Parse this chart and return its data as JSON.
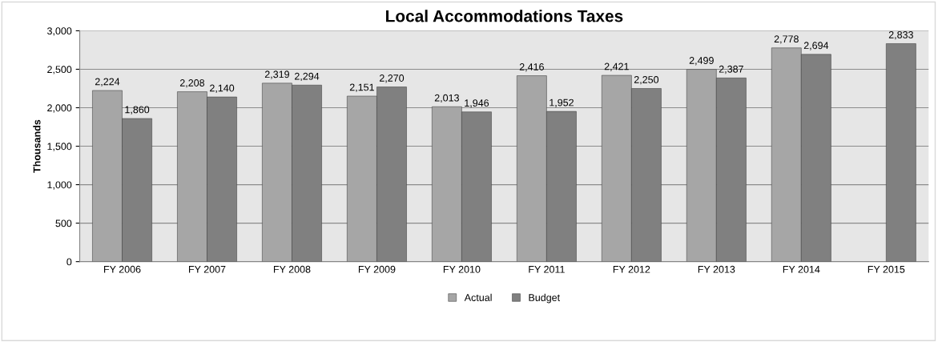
{
  "chart_data": {
    "type": "bar",
    "title": "Local Accommodations Taxes",
    "ylabel": "Thousands",
    "categories": [
      "FY 2006",
      "FY 2007",
      "FY 2008",
      "FY 2009",
      "FY 2010",
      "FY 2011",
      "FY 2012",
      "FY 2013",
      "FY 2014",
      "FY 2015"
    ],
    "series": [
      {
        "name": "Actual",
        "color": "#a6a6a6",
        "values": [
          2224,
          2208,
          2319,
          2151,
          2013,
          2416,
          2421,
          2499,
          2778,
          null
        ],
        "value_labels": [
          "2,224",
          "2,208",
          "2,319",
          "2,151",
          "2,013",
          "2,416",
          "2,421",
          "2,499",
          "2,778",
          null
        ]
      },
      {
        "name": "Budget",
        "color": "#808080",
        "values": [
          1860,
          2140,
          2294,
          2270,
          1946,
          1952,
          2250,
          2387,
          2694,
          2833
        ],
        "value_labels": [
          "1,860",
          "2,140",
          "2,294",
          "2,270",
          "1,946",
          "1,952",
          "2,250",
          "2,387",
          "2,694",
          "2,833"
        ]
      }
    ],
    "ylim": [
      0,
      3000
    ],
    "yticks": [
      0,
      {
        "value": 500,
        "label": "500"
      },
      {
        "value": 1000,
        "label": "1,000"
      },
      {
        "value": 1500,
        "label": "1,500"
      },
      {
        "value": 2000,
        "label": "2,000"
      },
      {
        "value": 2500,
        "label": "2,500"
      },
      {
        "value": 3000,
        "label": "3,000"
      }
    ],
    "grid": "y",
    "legend": "bottom"
  }
}
